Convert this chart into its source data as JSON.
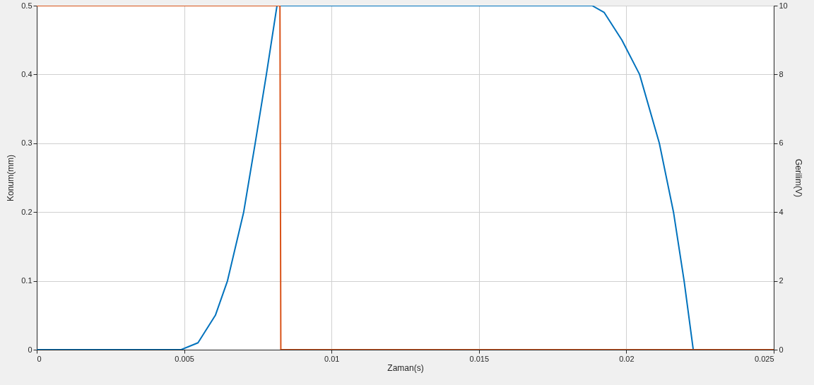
{
  "chart_data": {
    "type": "line",
    "xlabel": "Zaman(s)",
    "ylabel": "Konum(mm)",
    "y2label": "Gerilim(V)",
    "xlim": [
      0,
      0.025
    ],
    "xticks": [
      0,
      0.005,
      0.01,
      0.015,
      0.02,
      0.025
    ],
    "ylim": [
      0,
      0.5
    ],
    "yticks": [
      0,
      0.1,
      0.2,
      0.3,
      0.4,
      0.5
    ],
    "y2lim": [
      0,
      10
    ],
    "y2ticks": [
      0,
      2,
      4,
      6,
      8,
      10
    ],
    "grid": true,
    "line_style": "solid",
    "series": [
      {
        "color": "#0072bd",
        "x": [
          0,
          0.0049,
          0.00547,
          0.00606,
          0.00647,
          0.00702,
          0.00741,
          0.00779,
          0.00815,
          0.01884,
          0.01925,
          0.01985,
          0.02045,
          0.02112,
          0.0216,
          0.02196,
          0.02227,
          0.025
        ],
        "values": [
          0,
          0,
          0.01,
          0.05,
          0.1,
          0.2,
          0.3,
          0.4,
          0.5,
          0.5,
          0.49,
          0.45,
          0.4,
          0.3,
          0.2,
          0.1,
          0,
          0
        ]
      },
      {
        "color": "#d95319",
        "axis": "y2",
        "x": [
          0,
          0.00825,
          0.00828,
          0.025
        ],
        "values": [
          10,
          10,
          0,
          0
        ]
      }
    ]
  }
}
